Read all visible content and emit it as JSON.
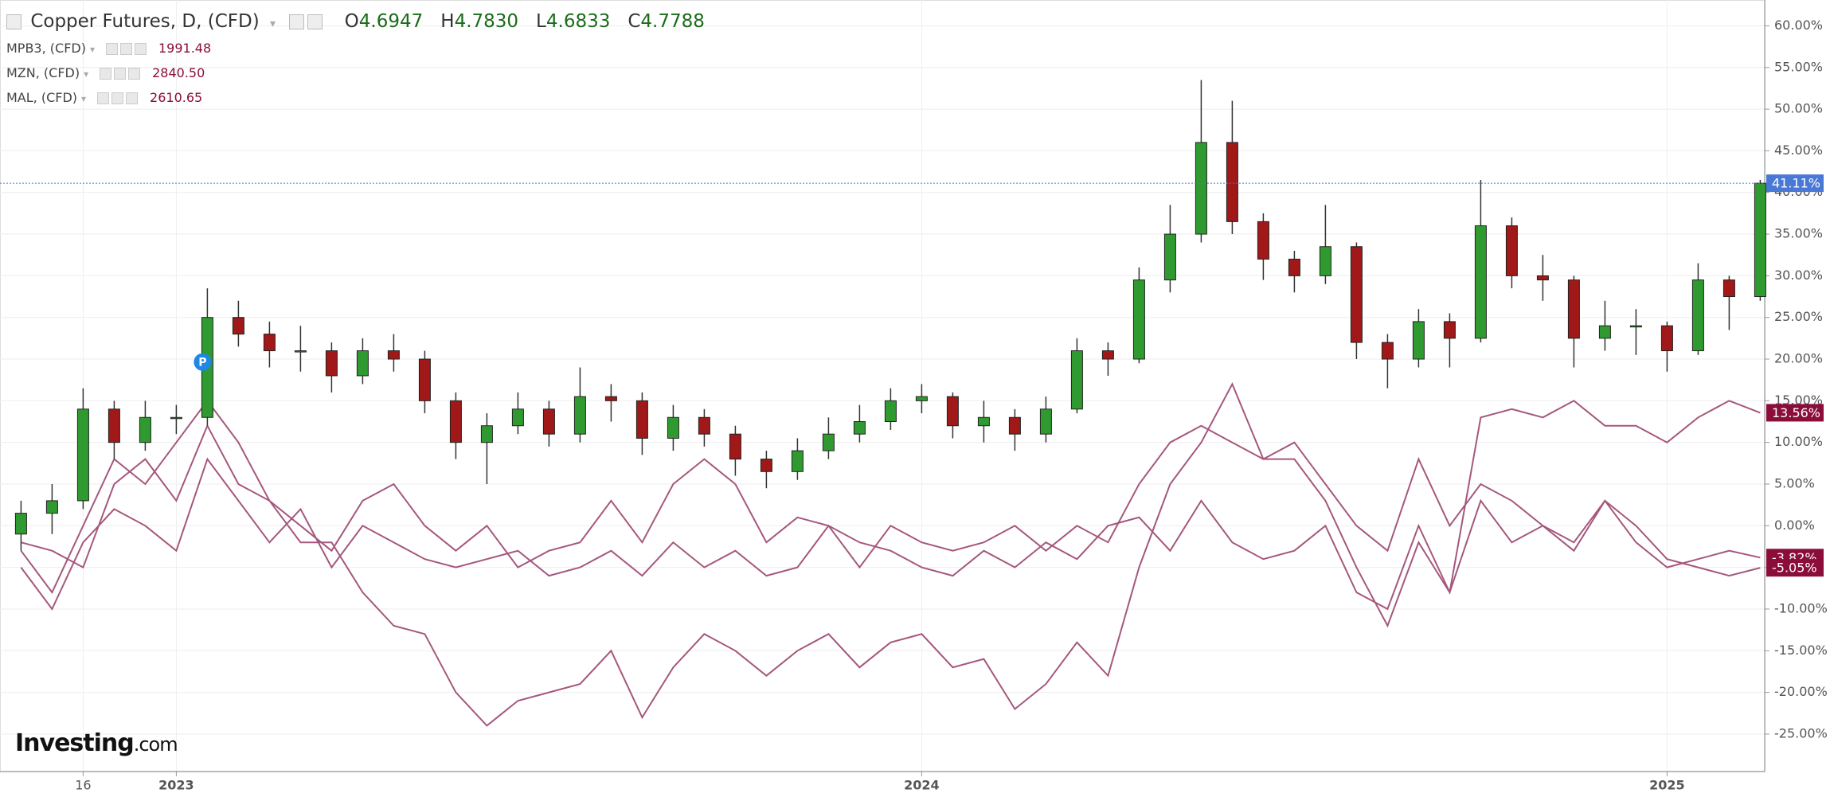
{
  "chart_data": {
    "type": "candlestick",
    "title": "Copper Futures, D, (CFD)",
    "ohlc": [
      {
        "label": "O",
        "value": "4.6947"
      },
      {
        "label": "H",
        "value": "4.7830"
      },
      {
        "label": "L",
        "value": "4.6833"
      },
      {
        "label": "C",
        "value": "4.7788"
      }
    ],
    "categories": [
      null,
      null,
      "16",
      null,
      null,
      "2023",
      null,
      null,
      null,
      null,
      null,
      null,
      null,
      null,
      null,
      null,
      null,
      null,
      null,
      null,
      null,
      null,
      null,
      null,
      null,
      null,
      null,
      null,
      null,
      "2024",
      null,
      null,
      null,
      null,
      null,
      null,
      null,
      null,
      null,
      null,
      null,
      null,
      null,
      null,
      null,
      null,
      null,
      null,
      null,
      null,
      null,
      null,
      null,
      "2025",
      null,
      null,
      null
    ],
    "open": [
      -1,
      1.5,
      3,
      14,
      10,
      13,
      13,
      25,
      23,
      21,
      21,
      18,
      21,
      20,
      15,
      10,
      12,
      14,
      11,
      15.5,
      15,
      10.5,
      13,
      11,
      8,
      6.5,
      9,
      11,
      12.5,
      15,
      15.5,
      12,
      13,
      11,
      14,
      21,
      20,
      29.5,
      35,
      46,
      36.5,
      32,
      30,
      33.5,
      22,
      20,
      24.5,
      22.5,
      36,
      30,
      29.5,
      22.5,
      24,
      24,
      21,
      29.5,
      27.5
    ],
    "high": [
      3,
      5,
      16.5,
      15,
      15,
      14.5,
      28.5,
      27,
      24.5,
      24,
      22,
      22.5,
      23,
      21,
      16,
      13.5,
      16,
      15,
      19,
      17,
      16,
      14.5,
      14,
      12,
      9,
      10.5,
      13,
      14.5,
      16.5,
      17,
      16,
      15,
      14,
      15.5,
      22.5,
      22,
      31,
      38.5,
      53.5,
      51,
      37.5,
      33,
      38.5,
      34,
      23,
      26,
      25.5,
      41.5,
      37,
      32.5,
      30,
      27,
      26,
      24.5,
      31.5,
      30,
      41.5
    ],
    "low": [
      -3,
      -1,
      2,
      8,
      9,
      11,
      12,
      21.5,
      19,
      18.5,
      16,
      17,
      18.5,
      13.5,
      8,
      5,
      11,
      9.5,
      10,
      12.5,
      8.5,
      9,
      9.5,
      6,
      4.5,
      5.5,
      8,
      10,
      11.5,
      13.5,
      10.5,
      10,
      9,
      10,
      13.5,
      18,
      19.5,
      28,
      34,
      35,
      29.5,
      28,
      29,
      20,
      16.5,
      19,
      19,
      22,
      28.5,
      27,
      19,
      21,
      20.5,
      18.5,
      20.5,
      23.5,
      27
    ],
    "close": [
      1.5,
      3,
      14,
      10,
      13,
      13,
      25,
      23,
      21,
      21,
      18,
      21,
      20,
      15,
      10,
      12,
      14,
      11,
      15.5,
      15,
      10.5,
      13,
      11,
      8,
      6.5,
      9,
      11,
      12.5,
      15,
      15.5,
      12,
      13,
      11,
      14,
      21,
      20,
      29.5,
      35,
      46,
      36.5,
      32,
      30,
      33.5,
      22,
      20,
      24.5,
      22.5,
      36,
      30,
      29.5,
      22.5,
      24,
      24,
      21,
      29.5,
      27.5,
      41.11
    ],
    "value_labels": [
      null,
      null,
      null,
      null,
      null,
      null,
      null,
      null,
      null,
      null,
      null,
      null,
      null,
      null,
      null,
      null,
      null,
      null,
      null,
      null,
      null,
      null,
      null,
      null,
      null,
      null,
      null,
      null,
      null,
      null,
      null,
      null,
      null,
      null,
      null,
      null,
      null,
      null,
      null,
      null,
      null,
      null,
      null,
      null,
      null,
      null,
      null,
      null,
      null,
      null,
      null,
      null,
      null,
      null,
      null,
      null,
      "41.11%"
    ],
    "up_color": "#2f9a2f",
    "down_color": "#a01818",
    "last_color": "#4a78d6",
    "series": [
      {
        "name": "MPB3, (CFD)",
        "price": "1991.48",
        "color": "#a5577d",
        "values": [
          -3,
          -8,
          0,
          8,
          5,
          10,
          15,
          10,
          3,
          -2,
          -2,
          -8,
          -12,
          -13,
          -20,
          -24,
          -21,
          -20,
          -19,
          -15,
          -23,
          -17,
          -13,
          -15,
          -18,
          -15,
          -13,
          -17,
          -14,
          -13,
          -17,
          -16,
          -22,
          -19,
          -14,
          -18,
          -5,
          5,
          10,
          17,
          8,
          8,
          3,
          -5,
          -12,
          -2,
          -8,
          13,
          14,
          13,
          15,
          12,
          12,
          10,
          13,
          15,
          13.56
        ],
        "value_labels": [
          null,
          null,
          null,
          null,
          null,
          null,
          null,
          null,
          null,
          null,
          null,
          null,
          null,
          null,
          null,
          null,
          null,
          null,
          null,
          null,
          null,
          null,
          null,
          null,
          null,
          null,
          null,
          null,
          null,
          null,
          null,
          null,
          null,
          null,
          null,
          null,
          null,
          null,
          null,
          null,
          null,
          null,
          null,
          null,
          null,
          null,
          null,
          null,
          null,
          null,
          null,
          null,
          null,
          null,
          null,
          null,
          "13.56%"
        ]
      },
      {
        "name": "MZN, (CFD)",
        "price": "2840.50",
        "color": "#a5577d",
        "values": [
          -2,
          -3,
          -5,
          5,
          8,
          3,
          12,
          5,
          3,
          0,
          -3,
          3,
          5,
          0,
          -3,
          0,
          -5,
          -3,
          -2,
          3,
          -2,
          5,
          8,
          5,
          -2,
          1,
          0,
          -5,
          0,
          -2,
          -3,
          -2,
          0,
          -3,
          0,
          -2,
          5,
          10,
          12,
          10,
          8,
          10,
          5,
          0,
          -3,
          8,
          0,
          5,
          3,
          0,
          -2,
          3,
          -2,
          -5,
          -4,
          -3,
          -3.82
        ],
        "value_labels": [
          null,
          null,
          null,
          null,
          null,
          null,
          null,
          null,
          null,
          null,
          null,
          null,
          null,
          null,
          null,
          null,
          null,
          null,
          null,
          null,
          null,
          null,
          null,
          null,
          null,
          null,
          null,
          null,
          null,
          null,
          null,
          null,
          null,
          null,
          null,
          null,
          null,
          null,
          null,
          null,
          null,
          null,
          null,
          null,
          null,
          null,
          null,
          null,
          null,
          null,
          null,
          null,
          null,
          null,
          null,
          null,
          "-3.82%"
        ]
      },
      {
        "name": "MAL, (CFD)",
        "price": "2610.65",
        "color": "#a5577d",
        "values": [
          -5,
          -10,
          -2,
          2,
          0,
          -3,
          8,
          3,
          -2,
          2,
          -5,
          0,
          -2,
          -4,
          -5,
          -4,
          -3,
          -6,
          -5,
          -3,
          -6,
          -2,
          -5,
          -3,
          -6,
          -5,
          0,
          -2,
          -3,
          -5,
          -6,
          -3,
          -5,
          -2,
          -4,
          0,
          1,
          -3,
          3,
          -2,
          -4,
          -3,
          0,
          -8,
          -10,
          0,
          -8,
          3,
          -2,
          0,
          -3,
          3,
          0,
          -4,
          -5,
          -6,
          -5.05
        ],
        "value_labels": [
          null,
          null,
          null,
          null,
          null,
          null,
          null,
          null,
          null,
          null,
          null,
          null,
          null,
          null,
          null,
          null,
          null,
          null,
          null,
          null,
          null,
          null,
          null,
          null,
          null,
          null,
          null,
          null,
          null,
          null,
          null,
          null,
          null,
          null,
          null,
          null,
          null,
          null,
          null,
          null,
          null,
          null,
          null,
          null,
          null,
          null,
          null,
          null,
          null,
          null,
          null,
          null,
          null,
          null,
          null,
          null,
          "-5.05%"
        ]
      }
    ],
    "ylim": [
      -29.5,
      63.1
    ],
    "yticks": [
      {
        "value": 60,
        "label": "60.00%"
      },
      {
        "value": 55,
        "label": "55.00%"
      },
      {
        "value": 50,
        "label": "50.00%"
      },
      {
        "value": 45,
        "label": "45.00%"
      },
      {
        "value": 40,
        "label": "40.00%"
      },
      {
        "value": 35,
        "label": "35.00%"
      },
      {
        "value": 30,
        "label": "30.00%"
      },
      {
        "value": 25,
        "label": "25.00%"
      },
      {
        "value": 20,
        "label": "20.00%"
      },
      {
        "value": 15,
        "label": "15.00%"
      },
      {
        "value": 10,
        "label": "10.00%"
      },
      {
        "value": 5,
        "label": "5.00%"
      },
      {
        "value": 0,
        "label": "0.00%"
      },
      {
        "value": -5,
        "label": "-5.00%"
      },
      {
        "value": -10,
        "label": "-10.00%"
      },
      {
        "value": -15,
        "label": "-15.00%"
      },
      {
        "value": -20,
        "label": "-20.00%"
      },
      {
        "value": -25,
        "label": "-25.00%"
      }
    ],
    "grid": true,
    "annotation": "P",
    "logo": {
      "name": "Investing",
      "suffix": ".com"
    }
  }
}
